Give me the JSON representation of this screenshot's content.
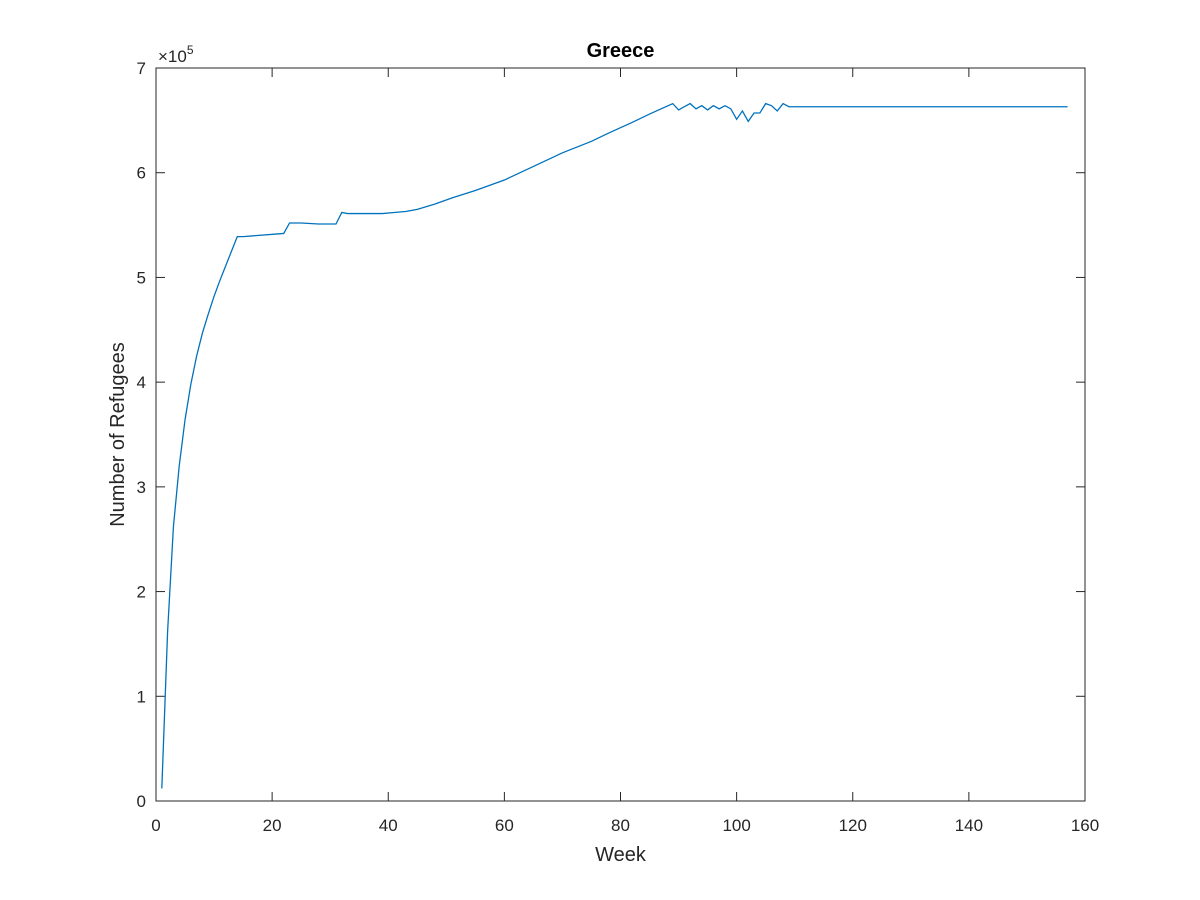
{
  "chart_data": {
    "type": "line",
    "title": "Greece",
    "xlabel": "Week",
    "ylabel": "Number of Refugees",
    "xlim": [
      0,
      160
    ],
    "ylim": [
      0,
      700000
    ],
    "y_exponent_label": "×10",
    "y_exponent_power": "5",
    "x_ticks": [
      0,
      20,
      40,
      60,
      80,
      100,
      120,
      140,
      160
    ],
    "y_ticks": [
      0,
      100000,
      200000,
      300000,
      400000,
      500000,
      600000,
      700000
    ],
    "x_tick_labels": [
      "0",
      "20",
      "40",
      "60",
      "80",
      "100",
      "120",
      "140",
      "160"
    ],
    "y_tick_labels": [
      "0",
      "1",
      "2",
      "3",
      "4",
      "5",
      "6",
      "7"
    ],
    "grid": false,
    "line_color": "#0072BD",
    "series": [
      {
        "x": [
          1,
          2,
          3,
          4,
          5,
          6,
          7,
          8,
          9,
          10,
          11,
          12,
          13,
          14,
          15,
          22,
          23,
          25,
          28,
          31,
          32,
          33,
          35,
          37,
          39,
          41,
          43,
          45,
          48,
          51,
          55,
          60,
          65,
          70,
          75,
          78,
          80,
          82,
          85,
          87,
          89,
          90,
          91,
          92,
          93,
          94,
          95,
          96,
          97,
          98,
          99,
          100,
          101,
          102,
          103,
          104,
          105,
          106,
          107,
          108,
          109,
          110,
          120,
          130,
          140,
          150,
          157
        ],
        "y": [
          12000,
          162000,
          262000,
          320000,
          364000,
          398000,
          425000,
          447000,
          465000,
          482000,
          497000,
          511000,
          525000,
          539000,
          539000,
          542000,
          552000,
          552000,
          551000,
          551000,
          562000,
          561000,
          561000,
          561000,
          561000,
          562000,
          563000,
          565000,
          570000,
          576000,
          583000,
          593000,
          606000,
          619000,
          630000,
          638000,
          643000,
          648000,
          656000,
          661000,
          666000,
          660000,
          663000,
          666000,
          661000,
          664000,
          660000,
          664000,
          661000,
          664000,
          661000,
          651000,
          659000,
          649000,
          657000,
          657000,
          666000,
          664000,
          659000,
          666000,
          663000,
          663000,
          663000,
          663000,
          663000,
          663000,
          663000
        ]
      }
    ]
  }
}
